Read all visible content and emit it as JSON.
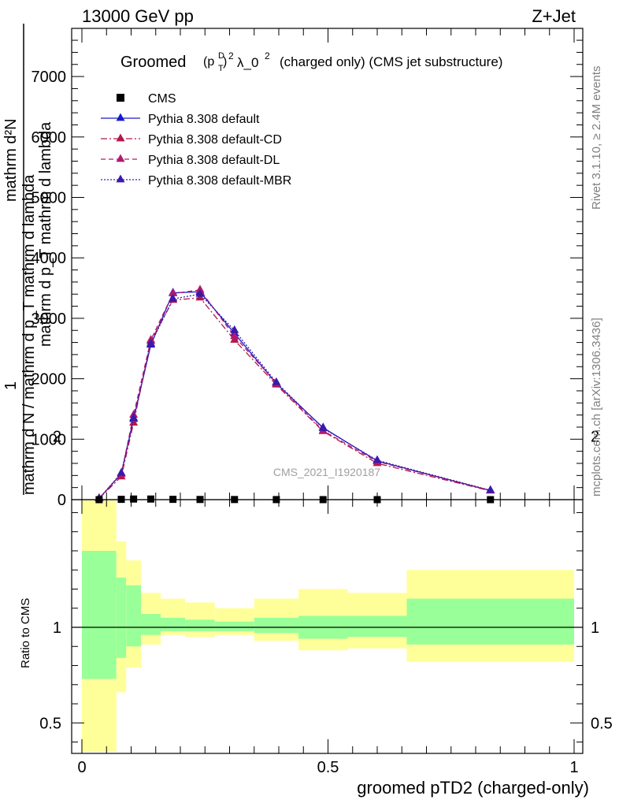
{
  "header": {
    "energy": "13000 GeV pp",
    "process": "Z+Jet"
  },
  "title": {
    "prefix": "Groomed",
    "formula": "(p",
    "sub": "T",
    "sup_d": "D",
    "sup_2": "2",
    "lambda": "λ_0",
    "lambda_sup": "2",
    "suffix": "(charged only) (CMS jet substructure)"
  },
  "ylabel_top": {
    "left": "mathrm d N / mathrm d p_T mathrm d lambda",
    "numerator": "mathrm d²N",
    "denominator": "mathrm d p_T mathrm d lambda",
    "prefix": "1"
  },
  "ylabel_bottom": "Ratio to CMS",
  "xlabel": "groomed pTD2 (charged-only)",
  "side_text": {
    "rivet": "Rivet 3.1.10, ≥ 2.4M events",
    "mcplots": "mcplots.cern.ch [arXiv:1306.3436]"
  },
  "watermark": "CMS_2021_I1920187",
  "legend": [
    {
      "label": "CMS",
      "style": "data"
    },
    {
      "label": "Pythia 8.308 default",
      "style": "solid"
    },
    {
      "label": "Pythia 8.308 default-CD",
      "style": "dashdot"
    },
    {
      "label": "Pythia 8.308 default-DL",
      "style": "dashed"
    },
    {
      "label": "Pythia 8.308 default-MBR",
      "style": "dotted"
    }
  ],
  "colors": {
    "default": "#1a1acc",
    "cd": "#b3184b",
    "dl": "#b3186e",
    "mbr": "#3a1aaa",
    "green": "#99ff99",
    "yellow": "#ffff99"
  },
  "chart_data": {
    "type": "line",
    "xlim": [
      0,
      1
    ],
    "ylim_top": [
      0,
      7800
    ],
    "ylim_ratio": [
      0.35,
      2.3
    ],
    "x_ticks": [
      "0",
      "0.5",
      "1"
    ],
    "y_ticks_top": [
      "0",
      "1000",
      "2000",
      "3000",
      "4000",
      "5000",
      "6000",
      "7000"
    ],
    "y_ticks_ratio": [
      "0.5",
      "1",
      "2"
    ],
    "x": [
      0.035,
      0.08,
      0.105,
      0.14,
      0.185,
      0.24,
      0.31,
      0.395,
      0.49,
      0.6,
      0.83
    ],
    "cms": [
      0,
      5,
      10,
      10,
      5,
      3,
      2,
      1,
      0.5,
      0.3,
      0.2
    ],
    "series": [
      {
        "name": "Pythia 8.308 default",
        "key": "default",
        "values": [
          20,
          430,
          1330,
          2560,
          3420,
          3440,
          2750,
          1920,
          1190,
          640,
          150
        ]
      },
      {
        "name": "Pythia 8.308 default-CD",
        "key": "cd",
        "values": [
          20,
          380,
          1270,
          2620,
          3300,
          3340,
          2640,
          1900,
          1130,
          600,
          145
        ]
      },
      {
        "name": "Pythia 8.308 default-DL",
        "key": "dl",
        "values": [
          20,
          420,
          1400,
          2640,
          3410,
          3470,
          2700,
          1930,
          1140,
          630,
          150
        ]
      },
      {
        "name": "Pythia 8.308 default-MBR",
        "key": "mbr",
        "values": [
          20,
          440,
          1350,
          2580,
          3320,
          3400,
          2800,
          1940,
          1180,
          650,
          155
        ]
      }
    ],
    "ratio_bands": [
      {
        "x0": 0.0,
        "x1": 0.07,
        "green": [
          0.73,
          1.4
        ],
        "yellow": [
          0.35,
          1.71
        ]
      },
      {
        "x0": 0.07,
        "x1": 0.09,
        "green": [
          0.84,
          1.26
        ],
        "yellow": [
          0.66,
          1.45
        ]
      },
      {
        "x0": 0.09,
        "x1": 0.12,
        "green": [
          0.9,
          1.22
        ],
        "yellow": [
          0.79,
          1.35
        ]
      },
      {
        "x0": 0.12,
        "x1": 0.16,
        "green": [
          0.96,
          1.07
        ],
        "yellow": [
          0.91,
          1.18
        ]
      },
      {
        "x0": 0.16,
        "x1": 0.21,
        "green": [
          0.98,
          1.05
        ],
        "yellow": [
          0.96,
          1.15
        ]
      },
      {
        "x0": 0.21,
        "x1": 0.27,
        "green": [
          0.98,
          1.04
        ],
        "yellow": [
          0.95,
          1.13
        ]
      },
      {
        "x0": 0.27,
        "x1": 0.35,
        "green": [
          0.98,
          1.03
        ],
        "yellow": [
          0.96,
          1.1
        ]
      },
      {
        "x0": 0.35,
        "x1": 0.44,
        "green": [
          0.97,
          1.05
        ],
        "yellow": [
          0.93,
          1.15
        ]
      },
      {
        "x0": 0.44,
        "x1": 0.54,
        "green": [
          0.94,
          1.06
        ],
        "yellow": [
          0.88,
          1.2
        ]
      },
      {
        "x0": 0.54,
        "x1": 0.66,
        "green": [
          0.95,
          1.06
        ],
        "yellow": [
          0.89,
          1.18
        ]
      },
      {
        "x0": 0.66,
        "x1": 1.0,
        "green": [
          0.91,
          1.15
        ],
        "yellow": [
          0.82,
          1.3
        ]
      }
    ]
  }
}
